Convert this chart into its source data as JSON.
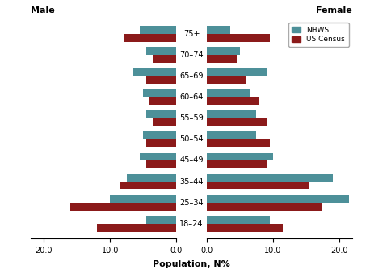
{
  "age_groups": [
    "18–24",
    "25–34",
    "35–44",
    "45–49",
    "50–54",
    "55–59",
    "60–64",
    "65–69",
    "70–74",
    "75+"
  ],
  "male_nhws": [
    4.5,
    10.0,
    7.5,
    5.5,
    5.0,
    4.5,
    5.0,
    6.5,
    4.5,
    5.5
  ],
  "male_census": [
    12.0,
    16.0,
    8.5,
    4.5,
    4.5,
    3.5,
    4.0,
    4.5,
    3.5,
    8.0
  ],
  "female_nhws": [
    9.5,
    21.5,
    19.0,
    10.0,
    7.5,
    7.5,
    6.5,
    9.0,
    5.0,
    3.5
  ],
  "female_census": [
    11.5,
    17.5,
    15.5,
    9.0,
    9.5,
    9.0,
    8.0,
    6.0,
    4.5,
    9.5
  ],
  "nhws_color": "#4d9099",
  "census_color": "#8b1a1a",
  "xlim": 22.0,
  "xlabel": "Population, N%",
  "male_label": "Male",
  "female_label": "Female",
  "legend_labels": [
    "NHWS",
    "US Census"
  ],
  "bar_height": 0.38,
  "background_color": "#ffffff"
}
